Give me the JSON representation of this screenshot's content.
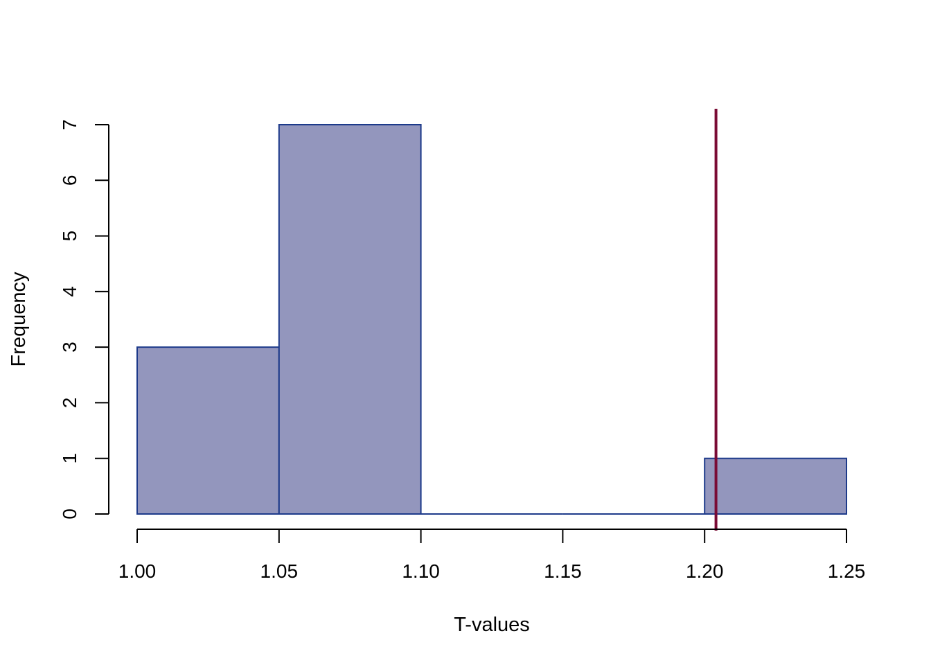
{
  "chart_data": {
    "type": "histogram",
    "title": "",
    "xlabel": "T-values",
    "ylabel": "Frequency",
    "bins": [
      {
        "start": 1.0,
        "end": 1.05,
        "count": 3
      },
      {
        "start": 1.05,
        "end": 1.1,
        "count": 7
      },
      {
        "start": 1.1,
        "end": 1.15,
        "count": 0
      },
      {
        "start": 1.15,
        "end": 1.2,
        "count": 0
      },
      {
        "start": 1.2,
        "end": 1.25,
        "count": 1
      }
    ],
    "xlim": [
      1.0,
      1.25
    ],
    "ylim": [
      0,
      7
    ],
    "x_ticks": [
      "1.00",
      "1.05",
      "1.10",
      "1.15",
      "1.20",
      "1.25"
    ],
    "y_ticks": [
      "0",
      "1",
      "2",
      "3",
      "4",
      "5",
      "6",
      "7"
    ],
    "vertical_line": {
      "x": 1.204,
      "color": "#7a0b35"
    },
    "bar_fill": "#9396bd",
    "bar_stroke": "#1d3a8a",
    "grid": false,
    "legend": "none"
  }
}
